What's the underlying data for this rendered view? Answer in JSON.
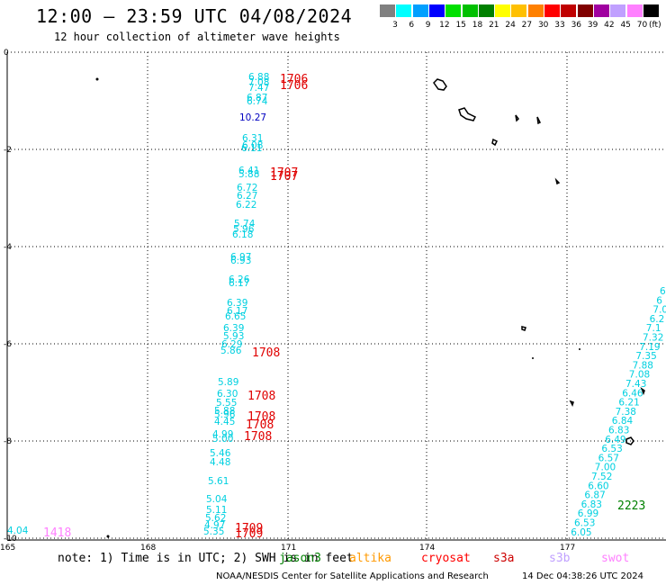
{
  "header": {
    "title": "12:00 — 23:59 UTC 04/08/2024",
    "subtitle": "12 hour collection of altimeter wave heights"
  },
  "legend": {
    "unit": "(ft)",
    "colors": [
      "#808080",
      "#00ffff",
      "#00a0ff",
      "#0000ff",
      "#00e000",
      "#00c000",
      "#008000",
      "#ffff00",
      "#ffc000",
      "#ff8000",
      "#ff0000",
      "#c00000",
      "#800000",
      "#a000a0",
      "#c0a0ff",
      "#ff80ff",
      "#000000"
    ],
    "labels": [
      "3",
      "6",
      "9",
      "12",
      "15",
      "18",
      "21",
      "24",
      "27",
      "30",
      "33",
      "36",
      "39",
      "42",
      "45",
      "70"
    ]
  },
  "axes": {
    "lat_labels": [
      "0",
      "-2",
      "-4",
      "-6",
      "-8",
      "-10"
    ],
    "lon_labels": [
      "165",
      "168",
      "171",
      "174",
      "177"
    ]
  },
  "tracks": {
    "track1": {
      "color": "#00d0e0",
      "values": [
        "6.88",
        "7.08",
        "7.47",
        "6.87",
        "6.74",
        "10.27",
        "6.31",
        "6.08",
        "6.11",
        "6.41",
        "5.88",
        "6.72",
        "6.27",
        "6.22",
        "5.74",
        "5.96",
        "6.18",
        "6.97",
        "6.93",
        "6.26",
        "6.17",
        "6.39",
        "6.17",
        "6.65",
        "6.39",
        "5.93",
        "6.29",
        "5.86",
        "5.89",
        "6.30",
        "5.55",
        "5.88",
        "5.96",
        "4.45",
        "4.99",
        "5.00",
        "5.46",
        "4.48",
        "5.61",
        "5.04",
        "5.11",
        "5.62",
        "4.97",
        "5.35",
        "4.04"
      ]
    },
    "track2": {
      "color": "#00d0e0",
      "values": [
        "6",
        "6",
        "7.0",
        "6.2",
        "7.1",
        "7.32",
        "7.19",
        "7.35",
        "7.88",
        "7.08",
        "7.43",
        "6.46",
        "6.21",
        "7.38",
        "6.84",
        "6.83",
        "6.49",
        "6.53",
        "6.57",
        "7.00",
        "7.52",
        "6.60",
        "6.87",
        "6.83",
        "6.99",
        "6.53",
        "6.05"
      ]
    },
    "cycle_labels": [
      "1706",
      "1706",
      "1707",
      "1707",
      "1708",
      "1708",
      "1708",
      "1708",
      "1708",
      "1709",
      "1709",
      "2223",
      "1418"
    ]
  },
  "bottom": {
    "note": "note: 1) Time is in UTC; 2) SWH is in feet",
    "satellites": [
      {
        "name": "jason3",
        "color": "#008000"
      },
      {
        "name": "altika",
        "color": "#ff9900"
      },
      {
        "name": "cryosat",
        "color": "#ff0000"
      },
      {
        "name": "s3a",
        "color": "#cc0000"
      },
      {
        "name": "s3b",
        "color": "#c0a0ff"
      },
      {
        "name": "swot",
        "color": "#ff80ff"
      }
    ],
    "credit": "NOAA/NESDIS Center for Satellite Applications and Research",
    "timestamp": "14 Dec 04:38:26 UTC 2024"
  }
}
